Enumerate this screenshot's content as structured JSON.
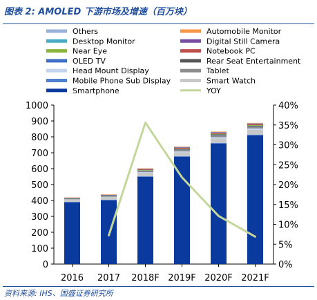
{
  "header": {
    "title": "图表 2: AMOLED 下游市场及增速（百万块）"
  },
  "footer": {
    "source": "资料来源: IHS、国盛证券研究所"
  },
  "chart_data": {
    "type": "bar",
    "stacked": true,
    "categories": [
      "2016",
      "2017",
      "2018F",
      "2019F",
      "2020F",
      "2021F"
    ],
    "y_left": {
      "ylim": [
        0,
        1000
      ],
      "ticks": [
        "0",
        "100",
        "200",
        "300",
        "400",
        "500",
        "600",
        "700",
        "800",
        "900",
        "1000"
      ]
    },
    "y_right": {
      "ylim": [
        0,
        40
      ],
      "ticks": [
        "0%",
        "5%",
        "10%",
        "15%",
        "20%",
        "25%",
        "30%",
        "35%",
        "40%"
      ]
    },
    "legend_position": "top",
    "series": [
      {
        "name": "Smartphone",
        "color": "#0a3a9e",
        "values": [
          388,
          401,
          548,
          675,
          758,
          810
        ]
      },
      {
        "name": "Mobile Phone Sub Display",
        "color": "#4f7fcf",
        "values": [
          4,
          4,
          4,
          4,
          4,
          4
        ]
      },
      {
        "name": "Smart Watch",
        "color": "#c8c8c8",
        "values": [
          14,
          16,
          22,
          24,
          28,
          30
        ]
      },
      {
        "name": "Head Mount Display",
        "color": "#c2d4ee",
        "values": [
          1,
          2,
          4,
          6,
          8,
          9
        ]
      },
      {
        "name": "Tablet",
        "color": "#8c8c8c",
        "values": [
          4,
          5,
          8,
          10,
          12,
          12
        ]
      },
      {
        "name": "OLED TV",
        "color": "#3e6ec6",
        "values": [
          1,
          1,
          2,
          3,
          4,
          4
        ]
      },
      {
        "name": "Rear Seat Entertainment",
        "color": "#555555",
        "values": [
          0,
          0,
          0,
          1,
          1,
          1
        ]
      },
      {
        "name": "Near Eye",
        "color": "#8bb43c",
        "values": [
          2,
          2,
          3,
          3,
          4,
          4
        ]
      },
      {
        "name": "Notebook PC",
        "color": "#c0504d",
        "values": [
          1,
          2,
          5,
          6,
          7,
          7
        ]
      },
      {
        "name": "Desktop Monitor",
        "color": "#4bacc6",
        "values": [
          1,
          1,
          2,
          2,
          2,
          2
        ]
      },
      {
        "name": "Digital Still Camera",
        "color": "#7a4ea3",
        "values": [
          1,
          1,
          1,
          1,
          1,
          1
        ]
      },
      {
        "name": "Others",
        "color": "#9ab0d8",
        "values": [
          1,
          2,
          2,
          2,
          2,
          2
        ]
      },
      {
        "name": "Automobile Monitor",
        "color": "#f79646",
        "values": [
          1,
          1,
          1,
          2,
          2,
          2
        ]
      }
    ],
    "line_series": {
      "name": "YOY",
      "color": "#c4d79b",
      "axis": "right",
      "values": [
        null,
        7.2,
        35.6,
        21.8,
        12.1,
        6.9
      ]
    },
    "legend": {
      "left": [
        "Others",
        "Desktop Monitor",
        "Near Eye",
        "OLED TV",
        "Head Mount Display",
        "Mobile Phone Sub Display",
        "Smartphone"
      ],
      "right": [
        "Automobile Monitor",
        "Digital Still Camera",
        "Notebook PC",
        "Rear Seat Entertainment",
        "Tablet",
        "Smart Watch",
        "YOY"
      ]
    }
  }
}
